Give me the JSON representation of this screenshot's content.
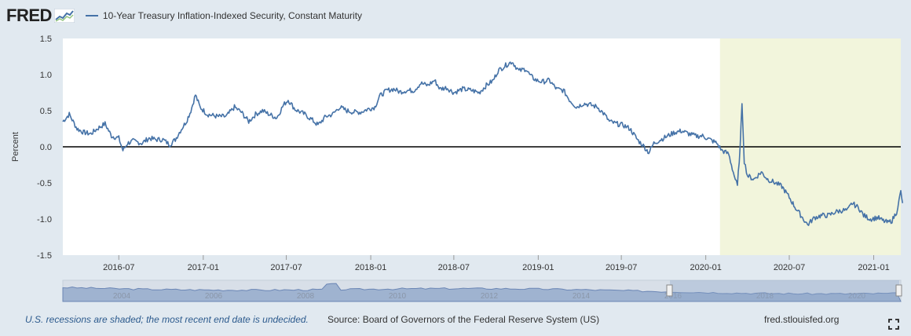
{
  "header": {
    "logo_text": "FRED",
    "series_title": "10-Year Treasury Inflation-Indexed Security, Constant Maturity"
  },
  "colors": {
    "line": "#4572a7",
    "recession": "#f2f5dc",
    "page_bg": "#e1e9f0",
    "navigator_fill": "#91a7c9"
  },
  "chart_data": {
    "type": "line",
    "title": "10-Year Treasury Inflation-Indexed Security, Constant Maturity",
    "ylabel": "Percent",
    "xlabel": "",
    "ylim": [
      -1.5,
      1.5
    ],
    "yticks": [
      "1.5",
      "1.0",
      "0.5",
      "0.0",
      "-0.5",
      "-1.0",
      "-1.5"
    ],
    "ytick_values": [
      1.5,
      1.0,
      0.5,
      0.0,
      -0.5,
      -1.0,
      -1.5
    ],
    "x_range": [
      "2016-03",
      "2021-03"
    ],
    "xticks": [
      "2016-07",
      "2017-01",
      "2017-07",
      "2018-01",
      "2018-07",
      "2019-01",
      "2019-07",
      "2020-01",
      "2020-07",
      "2021-01"
    ],
    "recession": {
      "start": "2020-02",
      "end": "2021-03",
      "label": "recession"
    },
    "series": [
      {
        "name": "10-Year Treasury Inflation-Indexed Security, Constant Maturity",
        "points": [
          [
            "2016-03-01",
            0.35
          ],
          [
            "2016-03-15",
            0.45
          ],
          [
            "2016-04-01",
            0.25
          ],
          [
            "2016-04-15",
            0.2
          ],
          [
            "2016-05-01",
            0.18
          ],
          [
            "2016-05-15",
            0.25
          ],
          [
            "2016-06-01",
            0.32
          ],
          [
            "2016-06-15",
            0.15
          ],
          [
            "2016-07-01",
            0.12
          ],
          [
            "2016-07-10",
            -0.05
          ],
          [
            "2016-07-20",
            0.05
          ],
          [
            "2016-08-01",
            0.08
          ],
          [
            "2016-08-20",
            0.05
          ],
          [
            "2016-09-05",
            0.12
          ],
          [
            "2016-09-20",
            0.1
          ],
          [
            "2016-10-05",
            0.1
          ],
          [
            "2016-10-20",
            0.03
          ],
          [
            "2016-11-01",
            0.1
          ],
          [
            "2016-11-10",
            0.2
          ],
          [
            "2016-11-25",
            0.35
          ],
          [
            "2016-12-05",
            0.5
          ],
          [
            "2016-12-15",
            0.72
          ],
          [
            "2016-12-25",
            0.55
          ],
          [
            "2017-01-10",
            0.45
          ],
          [
            "2017-02-01",
            0.42
          ],
          [
            "2017-02-20",
            0.42
          ],
          [
            "2017-03-10",
            0.55
          ],
          [
            "2017-03-25",
            0.48
          ],
          [
            "2017-04-10",
            0.35
          ],
          [
            "2017-04-25",
            0.45
          ],
          [
            "2017-05-10",
            0.5
          ],
          [
            "2017-05-25",
            0.45
          ],
          [
            "2017-06-10",
            0.4
          ],
          [
            "2017-06-25",
            0.58
          ],
          [
            "2017-07-05",
            0.65
          ],
          [
            "2017-07-20",
            0.52
          ],
          [
            "2017-08-10",
            0.45
          ],
          [
            "2017-08-25",
            0.38
          ],
          [
            "2017-09-08",
            0.3
          ],
          [
            "2017-09-25",
            0.42
          ],
          [
            "2017-10-10",
            0.45
          ],
          [
            "2017-10-25",
            0.55
          ],
          [
            "2017-11-10",
            0.5
          ],
          [
            "2017-11-25",
            0.48
          ],
          [
            "2017-12-10",
            0.48
          ],
          [
            "2017-12-25",
            0.52
          ],
          [
            "2018-01-10",
            0.55
          ],
          [
            "2018-01-20",
            0.7
          ],
          [
            "2018-02-05",
            0.78
          ],
          [
            "2018-02-20",
            0.8
          ],
          [
            "2018-03-05",
            0.76
          ],
          [
            "2018-03-20",
            0.78
          ],
          [
            "2018-04-05",
            0.78
          ],
          [
            "2018-04-20",
            0.88
          ],
          [
            "2018-05-05",
            0.85
          ],
          [
            "2018-05-20",
            0.92
          ],
          [
            "2018-06-01",
            0.8
          ],
          [
            "2018-06-15",
            0.82
          ],
          [
            "2018-07-01",
            0.75
          ],
          [
            "2018-07-20",
            0.8
          ],
          [
            "2018-08-10",
            0.78
          ],
          [
            "2018-08-25",
            0.75
          ],
          [
            "2018-09-10",
            0.85
          ],
          [
            "2018-09-25",
            0.92
          ],
          [
            "2018-10-05",
            1.05
          ],
          [
            "2018-10-20",
            1.12
          ],
          [
            "2018-11-05",
            1.18
          ],
          [
            "2018-11-20",
            1.05
          ],
          [
            "2018-12-05",
            1.08
          ],
          [
            "2018-12-15",
            0.98
          ],
          [
            "2018-12-28",
            0.92
          ],
          [
            "2019-01-10",
            0.9
          ],
          [
            "2019-01-25",
            0.92
          ],
          [
            "2019-02-10",
            0.8
          ],
          [
            "2019-02-25",
            0.78
          ],
          [
            "2019-03-10",
            0.65
          ],
          [
            "2019-03-25",
            0.55
          ],
          [
            "2019-04-10",
            0.6
          ],
          [
            "2019-04-25",
            0.58
          ],
          [
            "2019-05-10",
            0.55
          ],
          [
            "2019-05-25",
            0.45
          ],
          [
            "2019-06-05",
            0.35
          ],
          [
            "2019-06-20",
            0.32
          ],
          [
            "2019-07-05",
            0.3
          ],
          [
            "2019-07-20",
            0.25
          ],
          [
            "2019-08-05",
            0.1
          ],
          [
            "2019-08-20",
            0.0
          ],
          [
            "2019-08-30",
            -0.08
          ],
          [
            "2019-09-10",
            0.05
          ],
          [
            "2019-09-25",
            0.1
          ],
          [
            "2019-10-10",
            0.15
          ],
          [
            "2019-10-25",
            0.2
          ],
          [
            "2019-11-10",
            0.22
          ],
          [
            "2019-11-25",
            0.18
          ],
          [
            "2019-12-10",
            0.15
          ],
          [
            "2019-12-25",
            0.15
          ],
          [
            "2020-01-10",
            0.1
          ],
          [
            "2020-01-25",
            0.05
          ],
          [
            "2020-02-05",
            -0.05
          ],
          [
            "2020-02-20",
            -0.1
          ],
          [
            "2020-03-01",
            -0.35
          ],
          [
            "2020-03-10",
            -0.55
          ],
          [
            "2020-03-16",
            0.0
          ],
          [
            "2020-03-20",
            0.62
          ],
          [
            "2020-03-25",
            -0.2
          ],
          [
            "2020-04-01",
            -0.4
          ],
          [
            "2020-04-15",
            -0.45
          ],
          [
            "2020-05-01",
            -0.35
          ],
          [
            "2020-05-15",
            -0.45
          ],
          [
            "2020-06-01",
            -0.5
          ],
          [
            "2020-06-15",
            -0.55
          ],
          [
            "2020-07-01",
            -0.7
          ],
          [
            "2020-07-15",
            -0.85
          ],
          [
            "2020-08-01",
            -1.0
          ],
          [
            "2020-08-10",
            -1.08
          ],
          [
            "2020-08-25",
            -0.98
          ],
          [
            "2020-09-10",
            -0.95
          ],
          [
            "2020-09-25",
            -0.95
          ],
          [
            "2020-10-10",
            -0.9
          ],
          [
            "2020-10-25",
            -0.88
          ],
          [
            "2020-11-05",
            -0.88
          ],
          [
            "2020-11-15",
            -0.78
          ],
          [
            "2020-11-30",
            -0.85
          ],
          [
            "2020-12-10",
            -0.95
          ],
          [
            "2020-12-25",
            -1.0
          ],
          [
            "2021-01-10",
            -0.98
          ],
          [
            "2021-01-20",
            -1.02
          ],
          [
            "2021-02-01",
            -1.05
          ],
          [
            "2021-02-10",
            -1.02
          ],
          [
            "2021-02-20",
            -0.9
          ],
          [
            "2021-02-25",
            -0.75
          ],
          [
            "2021-03-01",
            -0.62
          ],
          [
            "2021-03-05",
            -0.78
          ]
        ]
      }
    ],
    "navigator_ticks": [
      "2004",
      "2006",
      "2008",
      "2010",
      "2012",
      "2014",
      "2016",
      "2018",
      "2020"
    ]
  },
  "footer": {
    "recession_note": "U.S. recessions are shaded; the most recent end date is undecided.",
    "source": "Source: Board of Governors of the Federal Reserve System (US)",
    "site": "fred.stlouisfed.org"
  }
}
